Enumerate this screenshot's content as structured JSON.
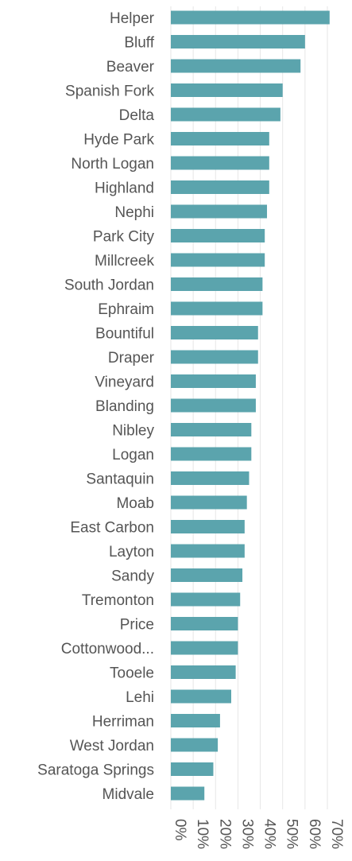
{
  "chart_data": {
    "type": "bar",
    "orientation": "horizontal",
    "categories": [
      "Helper",
      "Bluff",
      "Beaver",
      "Spanish Fork",
      "Delta",
      "Hyde Park",
      "North Logan",
      "Highland",
      "Nephi",
      "Park City",
      "Millcreek",
      "South Jordan",
      "Ephraim",
      "Bountiful",
      "Draper",
      "Vineyard",
      "Blanding",
      "Nibley",
      "Logan",
      "Santaquin",
      "Moab",
      "East Carbon",
      "Layton",
      "Sandy",
      "Tremonton",
      "Price",
      "Cottonwood...",
      "Tooele",
      "Lehi",
      "Herriman",
      "West Jordan",
      "Saratoga Springs",
      "Midvale"
    ],
    "values": [
      71,
      60,
      58,
      50,
      49,
      44,
      44,
      44,
      43,
      42,
      42,
      41,
      41,
      39,
      39,
      38,
      38,
      36,
      36,
      35,
      34,
      33,
      33,
      32,
      31,
      30,
      30,
      29,
      27,
      22,
      21,
      19,
      15
    ],
    "xlim": [
      0,
      70
    ],
    "xticks": [
      "0%",
      "10%",
      "20%",
      "30%",
      "40%",
      "50%",
      "60%",
      "70%"
    ],
    "grid": true,
    "bar_color": "#5ba4ad",
    "text_color": "#555555",
    "grid_color": "#e6e6e6"
  }
}
